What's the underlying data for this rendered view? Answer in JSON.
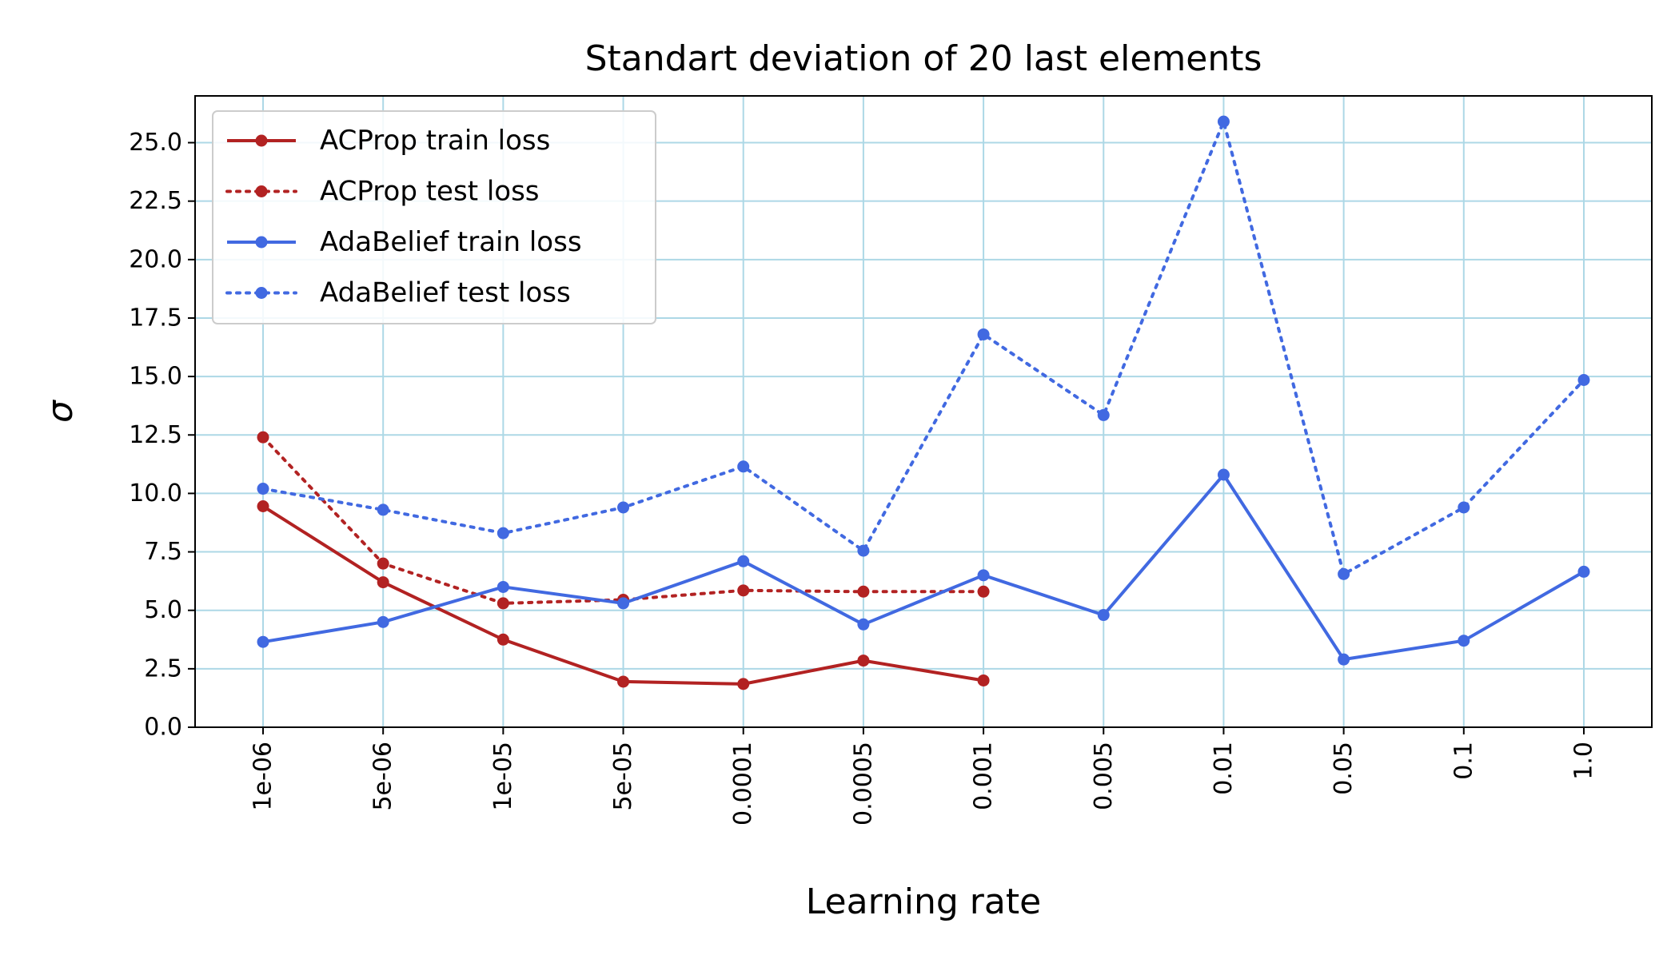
{
  "chart_data": {
    "type": "line",
    "title": "Standart deviation of 20 last elements",
    "xlabel": "Learning rate",
    "ylabel": "σ",
    "categories": [
      "1e-06",
      "5e-06",
      "1e-05",
      "5e-05",
      "0.0001",
      "0.0005",
      "0.001",
      "0.005",
      "0.01",
      "0.05",
      "0.1",
      "1.0"
    ],
    "ylim": [
      0,
      27
    ],
    "yticks": [
      "0.0",
      "2.5",
      "5.0",
      "7.5",
      "10.0",
      "12.5",
      "15.0",
      "17.5",
      "20.0",
      "22.5",
      "25.0"
    ],
    "grid": true,
    "legend_position": "top-left",
    "series": [
      {
        "name": "ACProp train loss",
        "color": "#b22222",
        "style": "solid",
        "values": [
          9.45,
          6.2,
          3.75,
          1.95,
          1.85,
          2.85,
          2.0,
          null,
          null,
          null,
          null,
          null
        ]
      },
      {
        "name": "ACProp test loss",
        "color": "#b22222",
        "style": "dotted",
        "values": [
          12.4,
          7.0,
          5.3,
          5.45,
          5.85,
          5.8,
          5.8,
          null,
          null,
          null,
          null,
          null
        ]
      },
      {
        "name": "AdaBelief train loss",
        "color": "#4169e1",
        "style": "solid",
        "values": [
          3.65,
          4.5,
          6.0,
          5.3,
          7.1,
          4.4,
          6.5,
          4.8,
          10.8,
          2.9,
          3.7,
          6.65
        ]
      },
      {
        "name": "AdaBelief test loss",
        "color": "#4169e1",
        "style": "dotted",
        "values": [
          10.2,
          9.3,
          8.3,
          9.4,
          11.15,
          7.55,
          16.8,
          13.35,
          25.9,
          6.55,
          9.4,
          14.85
        ]
      }
    ]
  }
}
